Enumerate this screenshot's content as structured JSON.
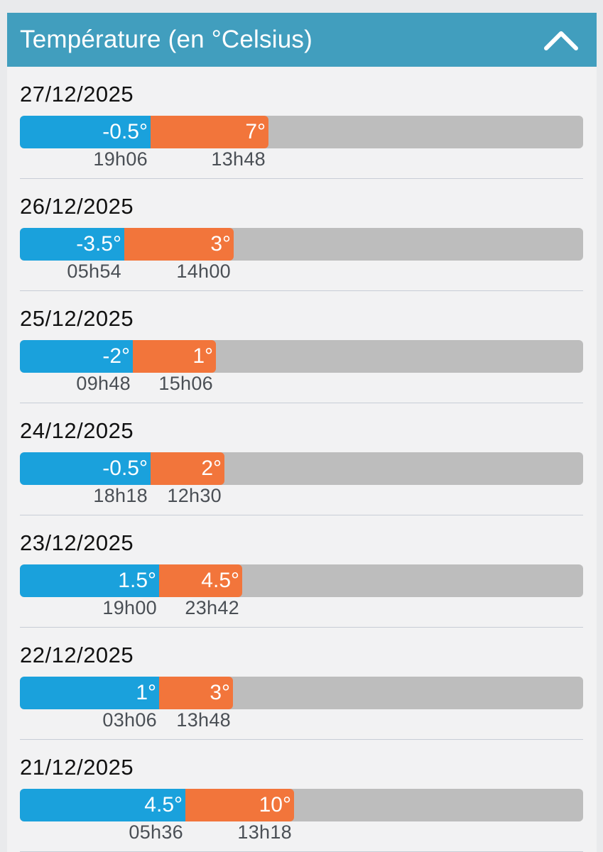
{
  "header": {
    "title": "Température (en °Celsius)",
    "toggle_icon": "chevron-up-icon",
    "background_color": "#419ebe"
  },
  "colors": {
    "min_bar": "#1aa1dc",
    "max_bar": "#f2753b",
    "track": "#bdbdbd"
  },
  "days": [
    {
      "date": "27/12/2025",
      "min_label": "-0.5°",
      "max_label": "7°",
      "min_time": "19h06",
      "max_time": "13h48"
    },
    {
      "date": "26/12/2025",
      "min_label": "-3.5°",
      "max_label": "3°",
      "min_time": "05h54",
      "max_time": "14h00"
    },
    {
      "date": "25/12/2025",
      "min_label": "-2°",
      "max_label": "1°",
      "min_time": "09h48",
      "max_time": "15h06"
    },
    {
      "date": "24/12/2025",
      "min_label": "-0.5°",
      "max_label": "2°",
      "min_time": "18h18",
      "max_time": "12h30"
    },
    {
      "date": "23/12/2025",
      "min_label": "1.5°",
      "max_label": "4.5°",
      "min_time": "19h00",
      "max_time": "23h42"
    },
    {
      "date": "22/12/2025",
      "min_label": "1°",
      "max_label": "3°",
      "min_time": "03h06",
      "max_time": "13h48"
    },
    {
      "date": "21/12/2025",
      "min_label": "4.5°",
      "max_label": "10°",
      "min_time": "05h36",
      "max_time": "13h18"
    }
  ]
}
